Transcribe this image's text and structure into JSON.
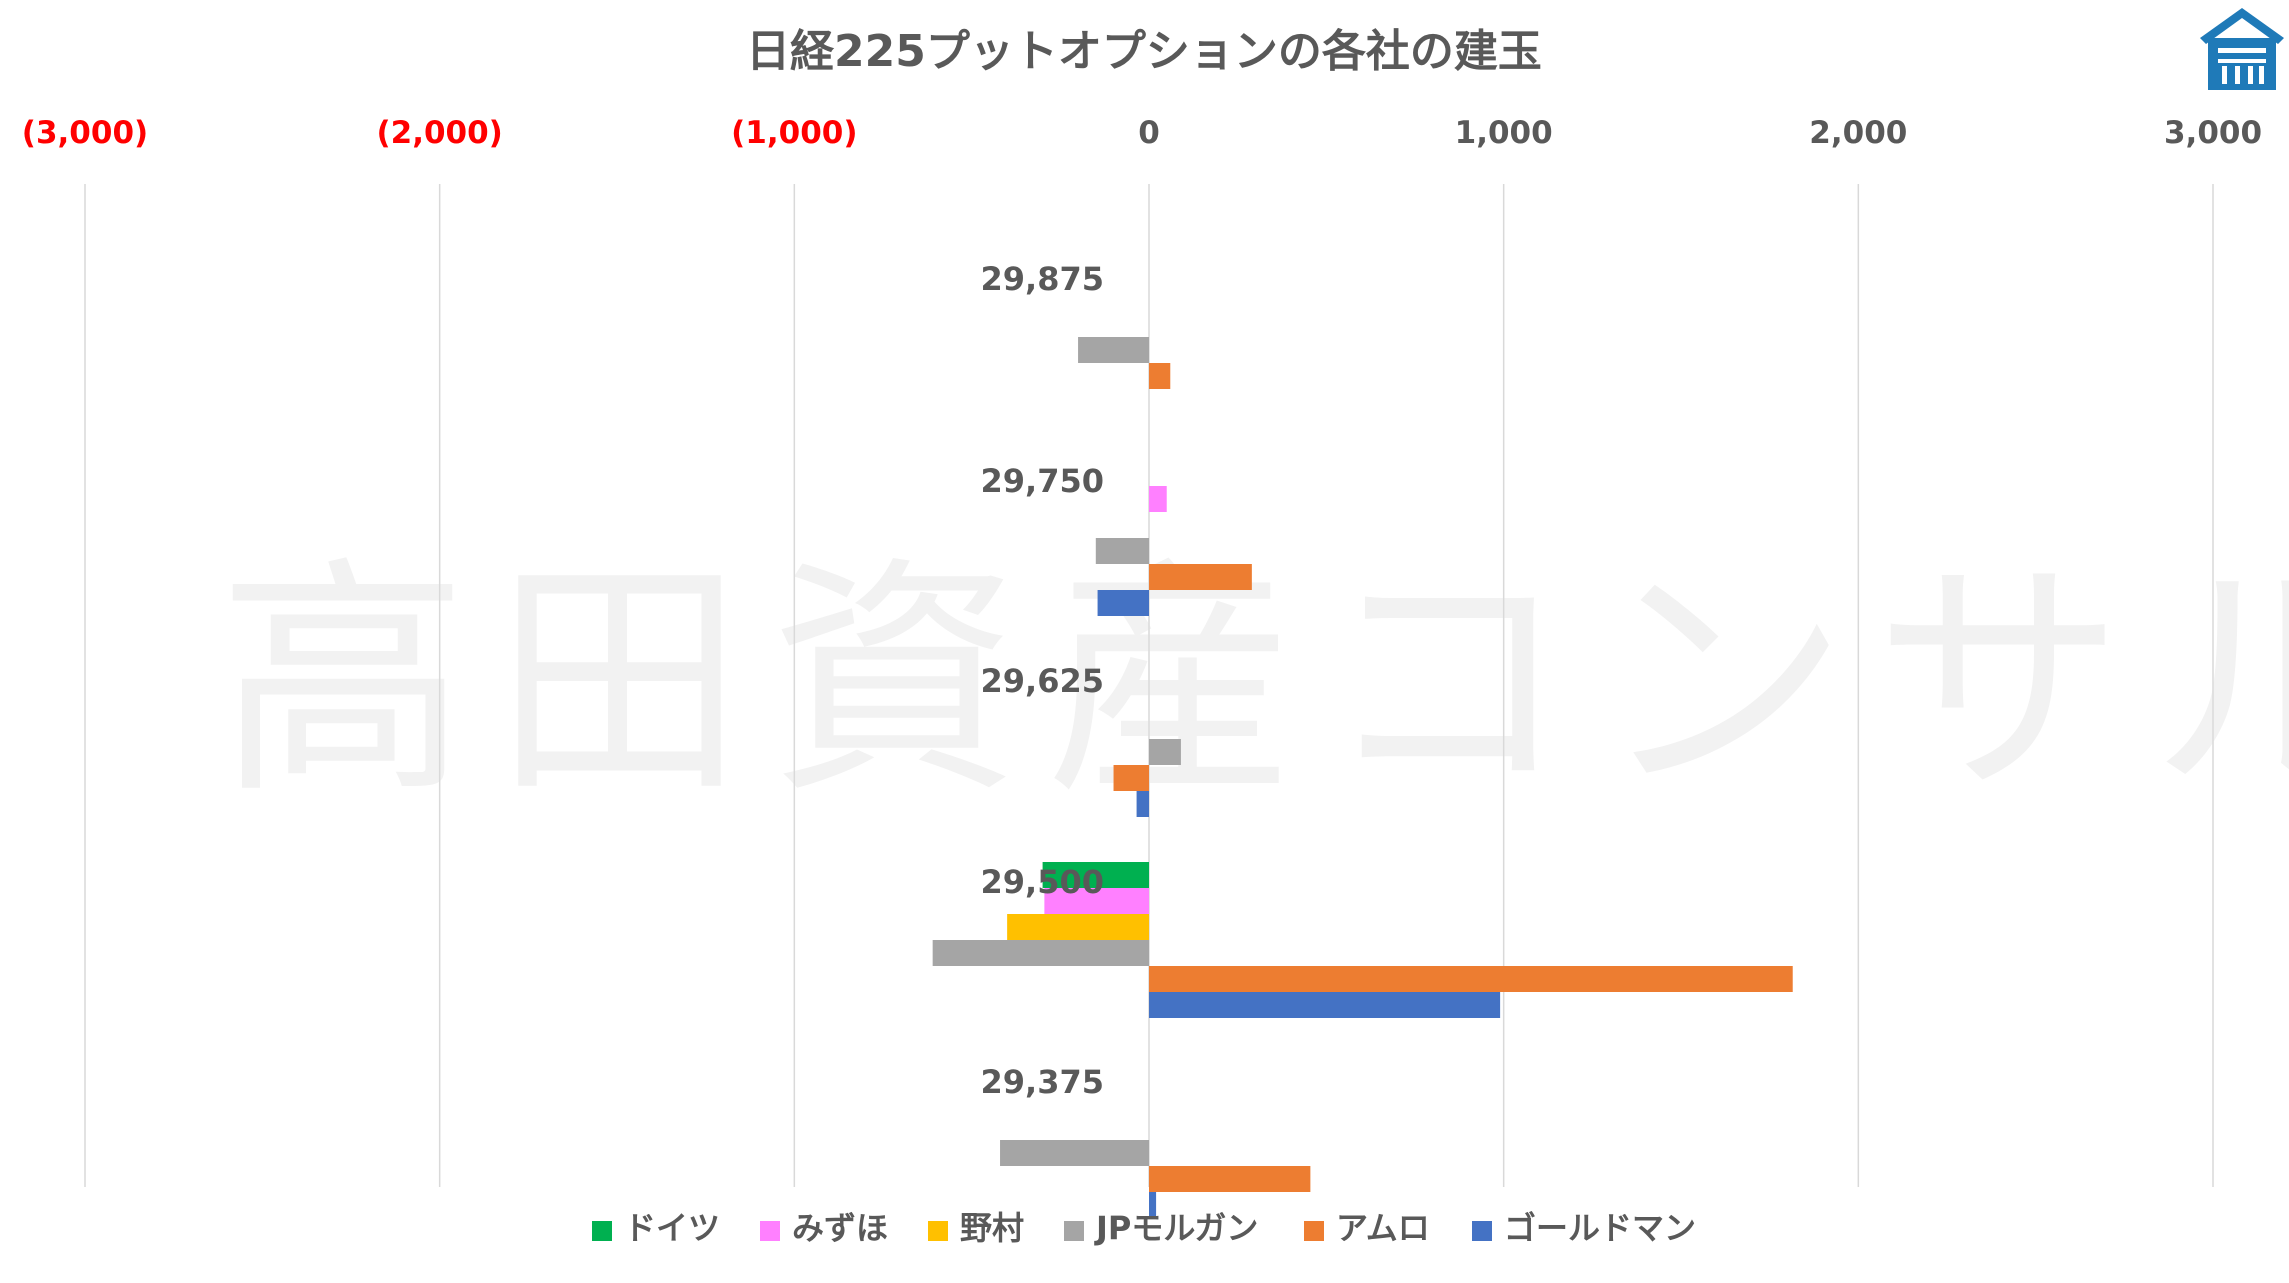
{
  "watermark": "高田資産コンサル",
  "colors": {
    "gridline": "#d9d9d9",
    "title_text": "#595959",
    "negative_tick": "#ff0000",
    "positive_tick": "#595959",
    "logo_blue": "#1f7ab8"
  },
  "chart_data": {
    "type": "bar",
    "orientation": "horizontal",
    "title": "日経225プットオプションの各社の建玉",
    "xlim": [
      -3000,
      3000
    ],
    "x_ticks": [
      -3000,
      -2000,
      -1000,
      0,
      1000,
      2000,
      3000
    ],
    "x_tick_labels": [
      "(3,000)",
      "(2,000)",
      "(1,000)",
      "0",
      "1,000",
      "2,000",
      "3,000"
    ],
    "x_axis_position": "top",
    "grid": true,
    "legend_position": "bottom",
    "categories": [
      "29,875",
      "29,750",
      "29,625",
      "29,500",
      "29,375"
    ],
    "series": [
      {
        "name": "ドイツ",
        "color": "#00b050",
        "values": [
          0,
          0,
          0,
          -300,
          0
        ]
      },
      {
        "name": "みずほ",
        "color": "#ff80ff",
        "values": [
          0,
          50,
          0,
          -295,
          0
        ]
      },
      {
        "name": "野村",
        "color": "#ffc000",
        "values": [
          0,
          0,
          0,
          -400,
          0
        ]
      },
      {
        "name": "JPモルガン",
        "color": "#a5a5a5",
        "values": [
          -200,
          -150,
          90,
          -610,
          -420
        ]
      },
      {
        "name": "アムロ",
        "color": "#ed7d31",
        "values": [
          60,
          290,
          -100,
          1815,
          455
        ]
      },
      {
        "name": "ゴールドマン",
        "color": "#4472c4",
        "values": [
          0,
          -145,
          -35,
          990,
          20
        ]
      }
    ]
  }
}
